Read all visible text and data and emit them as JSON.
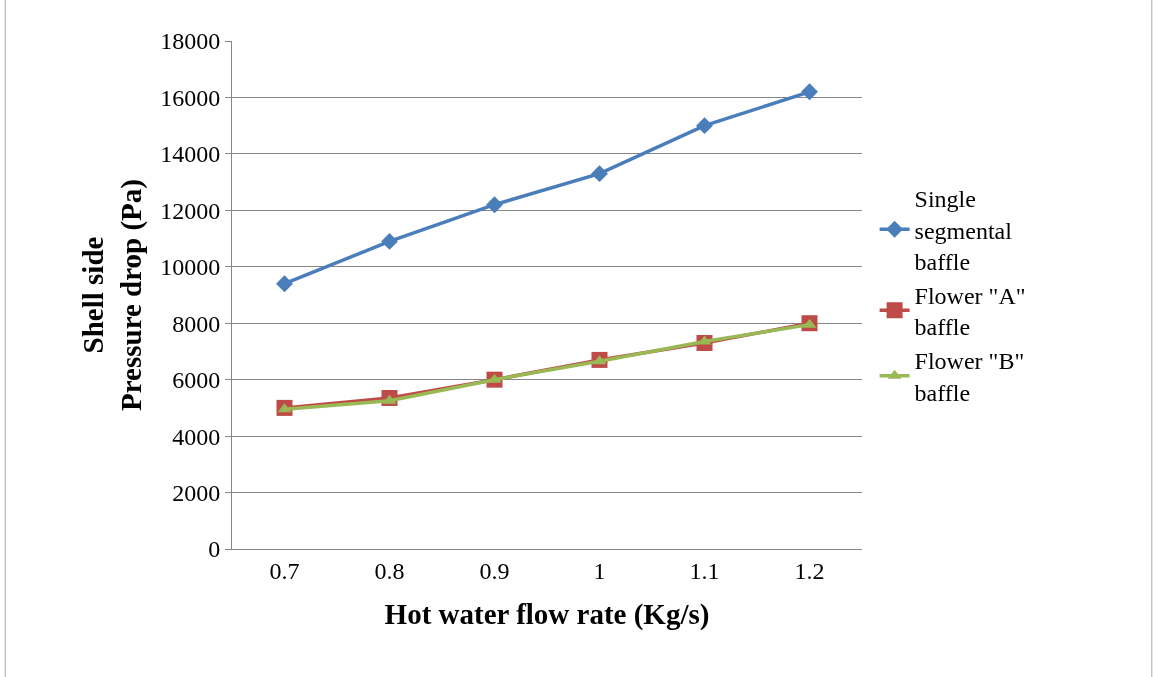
{
  "chart_data": {
    "type": "line",
    "xlabel": "Hot water flow rate (Kg/s)",
    "ylabel": "Shell side\nPressure drop (Pa)",
    "categories": [
      "0.7",
      "0.8",
      "0.9",
      "1",
      "1.1",
      "1.2"
    ],
    "series": [
      {
        "name": "Single segmental baffle",
        "color": "#4a7ebb",
        "marker": "diamond",
        "values": [
          9400,
          10900,
          12200,
          13300,
          15000,
          16200
        ]
      },
      {
        "name": "Flower \"A\" baffle",
        "color": "#be4b48",
        "marker": "square",
        "values": [
          5000,
          5350,
          6000,
          6700,
          7300,
          8000
        ]
      },
      {
        "name": "Flower \"B\" baffle",
        "color": "#98b954",
        "marker": "triangle",
        "values": [
          4950,
          5250,
          6000,
          6650,
          7350,
          7950
        ]
      }
    ],
    "ylim": [
      0,
      18000
    ],
    "yticks": [
      0,
      2000,
      4000,
      6000,
      8000,
      10000,
      12000,
      14000,
      16000,
      18000
    ],
    "grid": "y",
    "legend": "right",
    "line_style": "solid"
  }
}
